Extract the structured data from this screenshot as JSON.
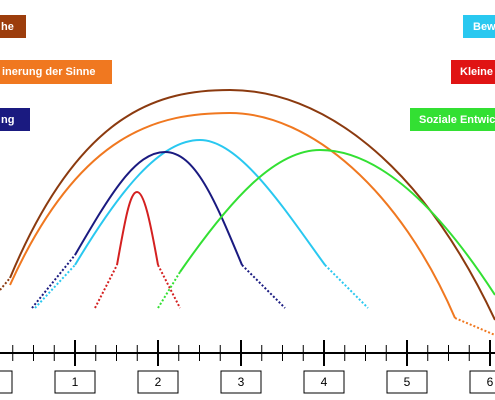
{
  "labels": {
    "brown": "he",
    "orange": "inerung der Sinne",
    "navy": "ng",
    "cyan": "Bew",
    "red": "Kleine",
    "green": "Soziale Entwick"
  },
  "axis": {
    "ticks": [
      "1",
      "2",
      "3",
      "4",
      "5",
      "6"
    ]
  }
}
